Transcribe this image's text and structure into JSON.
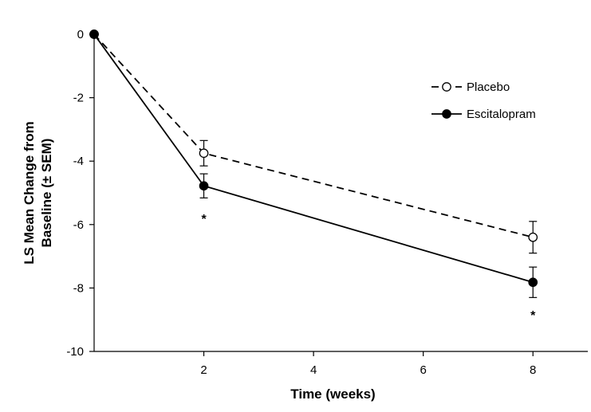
{
  "chart_data": {
    "type": "line",
    "title": "",
    "xlabel": "Time (weeks)",
    "ylabel_lines": [
      "LS Mean Change from",
      "Baseline (± SEM)"
    ],
    "xlim": [
      0,
      9
    ],
    "ylim": [
      -10,
      0
    ],
    "x_ticks": [
      2,
      4,
      6,
      8
    ],
    "y_ticks": [
      0,
      -2,
      -4,
      -6,
      -8,
      -10
    ],
    "grid": false,
    "legend_position": "top-right",
    "series": [
      {
        "name": "Placebo",
        "line_style": "dashed",
        "marker": "open-circle",
        "color": "#000000",
        "x": [
          0,
          2,
          8
        ],
        "values": [
          0,
          -3.75,
          -6.4
        ],
        "sem": [
          0,
          0.4,
          0.5
        ]
      },
      {
        "name": "Escitalopram",
        "line_style": "solid",
        "marker": "filled-circle",
        "color": "#000000",
        "x": [
          0,
          2,
          8
        ],
        "values": [
          0,
          -4.78,
          -7.82
        ],
        "sem": [
          0,
          0.38,
          0.48
        ]
      }
    ],
    "annotations": [
      {
        "text": "*",
        "x": 2,
        "y": -5.8
      },
      {
        "text": "*",
        "x": 8,
        "y": -8.85
      }
    ]
  }
}
